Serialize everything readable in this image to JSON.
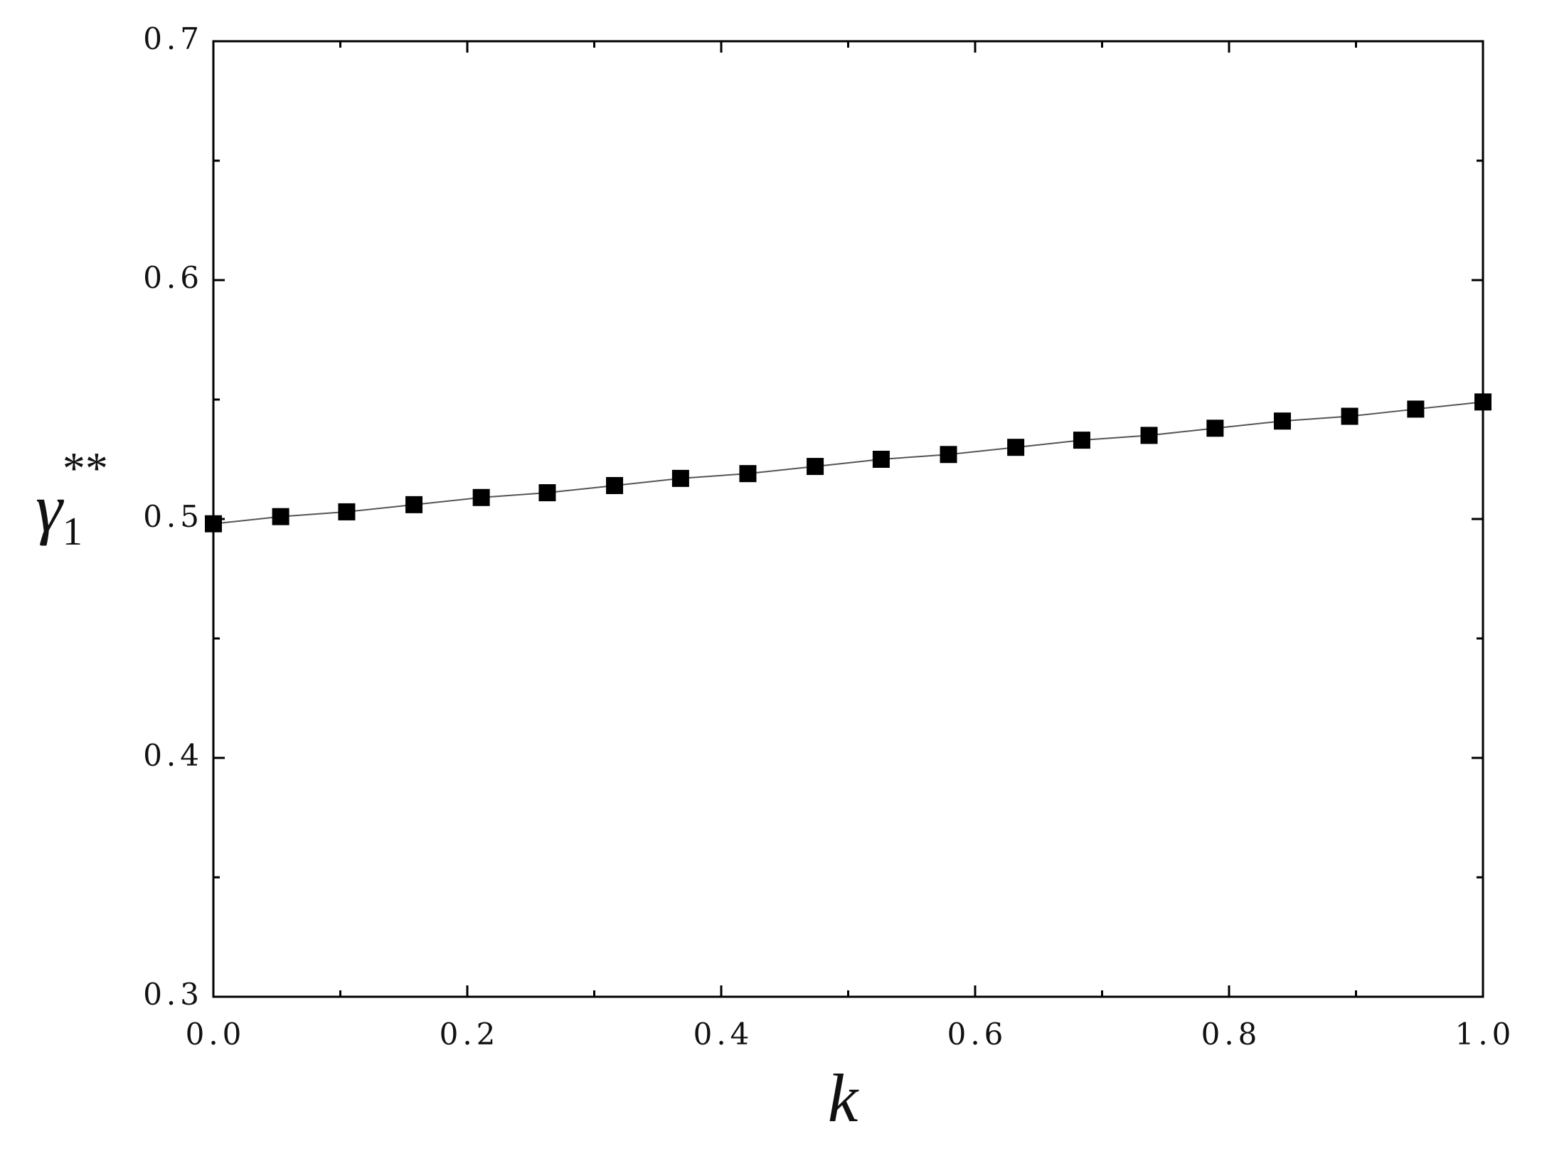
{
  "chart_data": {
    "type": "line",
    "xlabel": "k",
    "ylabel": {
      "text": "γ",
      "sub": "1",
      "sup": "**"
    },
    "x": [
      0,
      0.053,
      0.105,
      0.158,
      0.211,
      0.263,
      0.316,
      0.368,
      0.421,
      0.474,
      0.526,
      0.579,
      0.632,
      0.684,
      0.737,
      0.789,
      0.842,
      0.895,
      0.947,
      1.0
    ],
    "series": [
      {
        "color": "#000000",
        "line_color": "#555555",
        "marker": "square",
        "values": [
          0.498,
          0.501,
          0.503,
          0.506,
          0.509,
          0.511,
          0.514,
          0.517,
          0.519,
          0.522,
          0.525,
          0.527,
          0.53,
          0.533,
          0.535,
          0.538,
          0.541,
          0.543,
          0.546,
          0.549
        ]
      }
    ],
    "xlim": [
      0,
      1
    ],
    "ylim": [
      0.3,
      0.7
    ],
    "xticks": [
      {
        "value": 0,
        "label": "0.0"
      },
      0.2,
      0.4,
      0.6,
      0.8,
      {
        "value": 1,
        "label": "1.0"
      }
    ],
    "yticks": [
      0.3,
      0.4,
      0.5,
      0.6,
      0.7
    ],
    "xminorticks": [
      0.1,
      0.3,
      0.5,
      0.7,
      0.9
    ],
    "yminorticks": [
      0.35,
      0.45,
      0.55,
      0.65
    ],
    "grid": false
  }
}
